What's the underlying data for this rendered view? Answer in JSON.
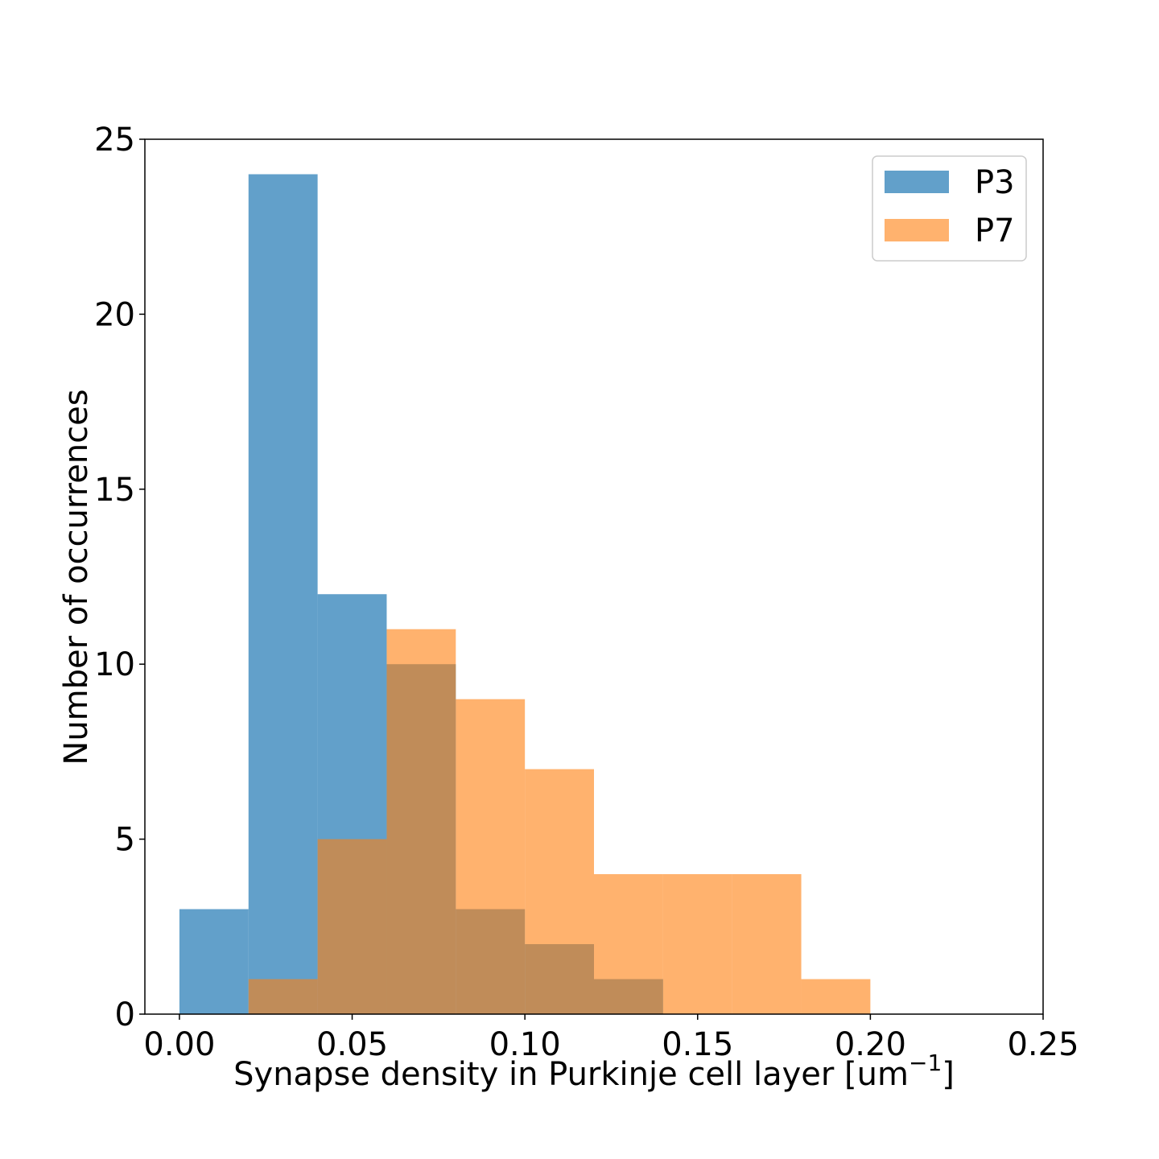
{
  "chart_data": {
    "type": "bar",
    "histogram": true,
    "title": "",
    "xlabel": "Synapse density in Purkinje cell layer [um",
    "xlabel_superscript": "−1",
    "xlabel_suffix": "]",
    "ylabel": "Number of occurrences",
    "xlim": [
      -0.01,
      0.25
    ],
    "ylim": [
      0,
      25
    ],
    "x_ticks": [
      0.0,
      0.05,
      0.1,
      0.15,
      0.2,
      0.25
    ],
    "x_tick_labels": [
      "0.00",
      "0.05",
      "0.10",
      "0.15",
      "0.20",
      "0.25"
    ],
    "y_ticks": [
      0,
      5,
      10,
      15,
      20,
      25
    ],
    "y_tick_labels": [
      "0",
      "5",
      "10",
      "15",
      "20",
      "25"
    ],
    "grid": false,
    "legend_position": "top-right",
    "bin_edges": [
      0.0,
      0.02,
      0.04,
      0.06,
      0.08,
      0.1,
      0.12,
      0.14,
      0.16,
      0.18,
      0.2
    ],
    "series": [
      {
        "name": "P3",
        "color": "#1f77b4",
        "opacity": 0.7,
        "counts": [
          3,
          24,
          12,
          10,
          3,
          2,
          1,
          0,
          0,
          0
        ]
      },
      {
        "name": "P7",
        "color": "#ff7f0e",
        "opacity": 0.6,
        "counts": [
          0,
          1,
          5,
          11,
          9,
          7,
          4,
          4,
          4,
          1
        ]
      }
    ]
  }
}
